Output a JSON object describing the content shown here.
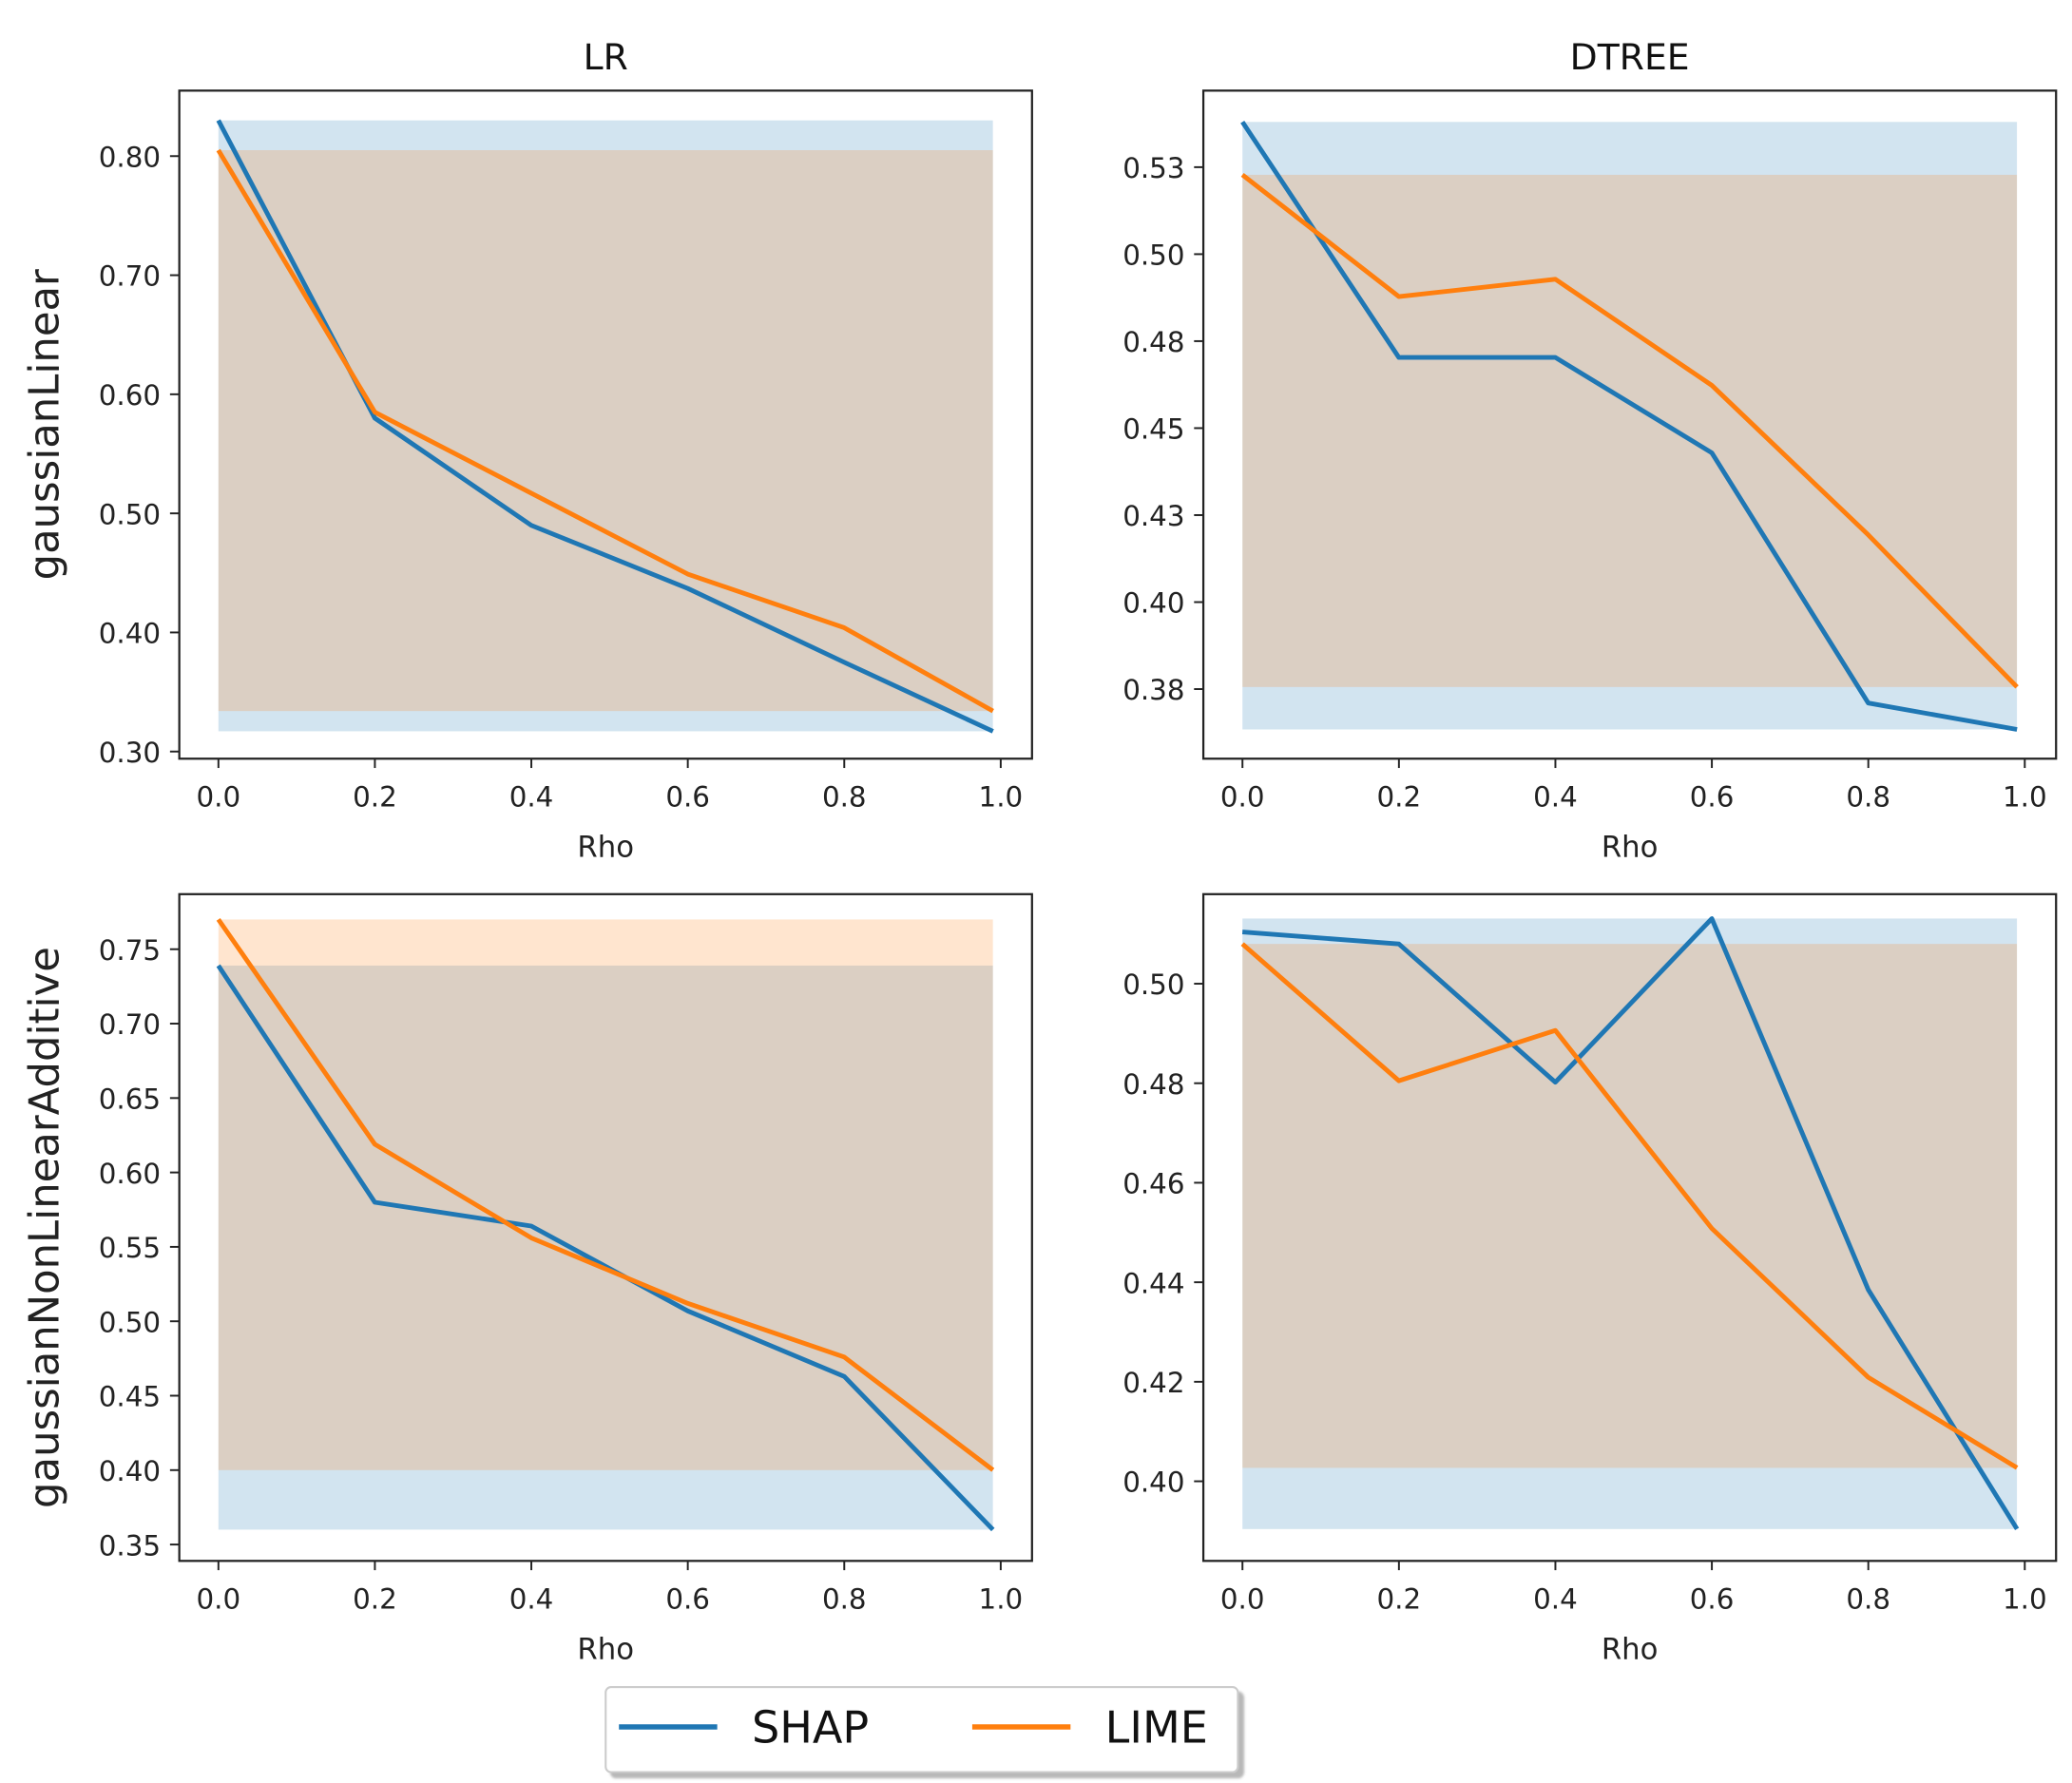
{
  "colors": {
    "shap": "#1f77b4",
    "lime": "#ff7f0e"
  },
  "legend": {
    "shap": "SHAP",
    "lime": "LIME",
    "placement": "bottom-center"
  },
  "chart_data": [
    {
      "type": "line",
      "title": "LR",
      "xlabel": "Rho",
      "ylabel": "gaussianLinear",
      "x": [
        0.0,
        0.2,
        0.4,
        0.6,
        0.8,
        0.99
      ],
      "xticks": [
        0.0,
        0.2,
        0.4,
        0.6,
        0.8,
        1.0
      ],
      "xtick_labels": [
        "0.0",
        "0.2",
        "0.4",
        "0.6",
        "0.8",
        "1.0"
      ],
      "yticks": [
        0.3,
        0.4,
        0.5,
        0.6,
        0.7,
        0.8
      ],
      "ytick_labels": [
        "0.30",
        "0.40",
        "0.50",
        "0.60",
        "0.70",
        "0.80"
      ],
      "ylim": [
        0.294,
        0.855
      ],
      "series": [
        {
          "name": "SHAP",
          "values": [
            0.83,
            0.58,
            0.49,
            0.437,
            0.375,
            0.317
          ],
          "band": [
            0.317,
            0.83
          ]
        },
        {
          "name": "LIME",
          "values": [
            0.805,
            0.585,
            0.517,
            0.449,
            0.404,
            0.334
          ],
          "band": [
            0.334,
            0.805
          ]
        }
      ]
    },
    {
      "type": "line",
      "title": "DTREE",
      "xlabel": "Rho",
      "ylabel": "",
      "x": [
        0.0,
        0.2,
        0.4,
        0.6,
        0.8,
        0.99
      ],
      "xticks": [
        0.0,
        0.2,
        0.4,
        0.6,
        0.8,
        1.0
      ],
      "xtick_labels": [
        "0.0",
        "0.2",
        "0.4",
        "0.6",
        "0.8",
        "1.0"
      ],
      "yticks": [
        0.375,
        0.4,
        0.425,
        0.45,
        0.475,
        0.5,
        0.525
      ],
      "ytick_labels": [
        "0.38",
        "0.40",
        "0.43",
        "0.45",
        "0.48",
        "0.50",
        "0.53"
      ],
      "ylim": [
        0.355,
        0.547
      ],
      "series": [
        {
          "name": "SHAP",
          "values": [
            0.538,
            0.4703,
            0.4703,
            0.4429,
            0.371,
            0.3634
          ],
          "band": [
            0.3634,
            0.538
          ]
        },
        {
          "name": "LIME",
          "values": [
            0.5228,
            0.4878,
            0.4928,
            0.4623,
            0.4193,
            0.3756
          ],
          "band": [
            0.3756,
            0.5228
          ]
        }
      ]
    },
    {
      "type": "line",
      "title": "",
      "xlabel": "Rho",
      "ylabel": "gaussianNonLinearAdditive",
      "x": [
        0.0,
        0.2,
        0.4,
        0.6,
        0.8,
        0.99
      ],
      "xticks": [
        0.0,
        0.2,
        0.4,
        0.6,
        0.8,
        1.0
      ],
      "xtick_labels": [
        "0.0",
        "0.2",
        "0.4",
        "0.6",
        "0.8",
        "1.0"
      ],
      "yticks": [
        0.35,
        0.4,
        0.45,
        0.5,
        0.55,
        0.6,
        0.65,
        0.7,
        0.75
      ],
      "ytick_labels": [
        "0.35",
        "0.40",
        "0.45",
        "0.50",
        "0.55",
        "0.60",
        "0.65",
        "0.70",
        "0.75"
      ],
      "ylim": [
        0.339,
        0.787
      ],
      "series": [
        {
          "name": "SHAP",
          "values": [
            0.739,
            0.58,
            0.564,
            0.507,
            0.463,
            0.36
          ],
          "band": [
            0.36,
            0.739
          ]
        },
        {
          "name": "LIME",
          "values": [
            0.77,
            0.619,
            0.556,
            0.512,
            0.476,
            0.4
          ],
          "band": [
            0.4,
            0.77
          ]
        }
      ]
    },
    {
      "type": "line",
      "title": "",
      "xlabel": "Rho",
      "ylabel": "",
      "x": [
        0.0,
        0.2,
        0.4,
        0.6,
        0.8,
        0.99
      ],
      "xticks": [
        0.0,
        0.2,
        0.4,
        0.6,
        0.8,
        1.0
      ],
      "xtick_labels": [
        "0.0",
        "0.2",
        "0.4",
        "0.6",
        "0.8",
        "1.0"
      ],
      "yticks": [
        0.4,
        0.42,
        0.44,
        0.46,
        0.48,
        0.5
      ],
      "ytick_labels": [
        "0.40",
        "0.42",
        "0.44",
        "0.46",
        "0.48",
        "0.50"
      ],
      "ylim": [
        0.384,
        0.518
      ],
      "series": [
        {
          "name": "SHAP",
          "values": [
            0.5104,
            0.508,
            0.4802,
            0.5131,
            0.4385,
            0.3904
          ],
          "band": [
            0.3904,
            0.5131
          ]
        },
        {
          "name": "LIME",
          "values": [
            0.508,
            0.4805,
            0.4906,
            0.4508,
            0.4209,
            0.4027
          ],
          "band": [
            0.4027,
            0.508
          ]
        }
      ]
    }
  ]
}
